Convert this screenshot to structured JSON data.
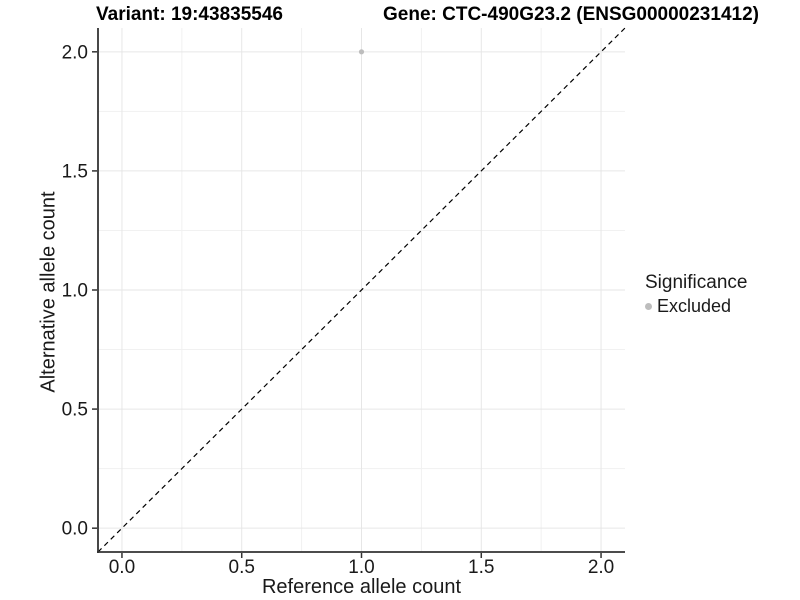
{
  "figure": {
    "title_variant": "Variant: 19:43835546",
    "title_gene": "Gene: CTC-490G23.2 (ENSG00000231412)"
  },
  "chart_data": {
    "type": "scatter",
    "title": "Variant: 19:43835546   Gene: CTC-490G23.2 (ENSG00000231412)",
    "xlabel": "Reference allele count",
    "ylabel": "Alternative allele count",
    "xlim": [
      -0.1,
      2.1
    ],
    "ylim": [
      -0.1,
      2.1
    ],
    "x_ticks": [
      0.0,
      0.5,
      1.0,
      1.5,
      2.0
    ],
    "y_ticks": [
      0.0,
      0.5,
      1.0,
      1.5,
      2.0
    ],
    "x_tick_labels": [
      "0.0",
      "0.5",
      "1.0",
      "1.5",
      "2.0"
    ],
    "y_tick_labels": [
      "0.0",
      "0.5",
      "1.0",
      "1.5",
      "2.0"
    ],
    "minor_ticks": [
      0.25,
      0.75,
      1.25,
      1.75
    ],
    "grid": true,
    "series": [
      {
        "name": "Excluded",
        "color": "#bdbdbd",
        "points": [
          {
            "x": 1.0,
            "y": 2.0
          }
        ]
      }
    ],
    "reference_line": {
      "type": "identity",
      "slope": 1,
      "intercept": 0,
      "style": "dashed",
      "color": "#000000"
    },
    "legend": {
      "title": "Significance",
      "position": "right",
      "entries": [
        {
          "label": "Excluded",
          "color": "#bdbdbd"
        }
      ]
    }
  },
  "colors": {
    "background": "#ffffff",
    "grid_major": "#e6e6e6",
    "grid_minor": "#f1f1f1",
    "axis_line": "#333333",
    "tick_mark": "#333333",
    "tick_text": "#1a1a1a",
    "title_text": "#000000",
    "point": "#bdbdbd"
  }
}
